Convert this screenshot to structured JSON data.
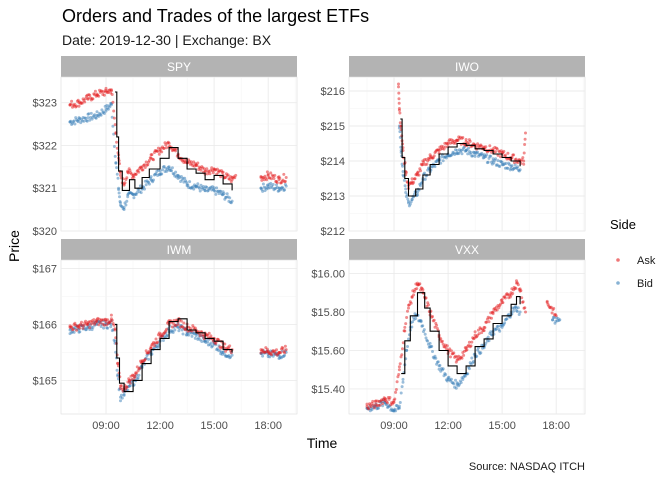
{
  "title": "Orders and Trades of the largest ETFs",
  "subtitle": "Date: 2019-12-30 | Exchange: BX",
  "caption": "Source: NASDAQ ITCH",
  "colors": {
    "ask": "#e41a1c",
    "bid": "#377eb8",
    "trade": "#000000",
    "strip": "#b3b3b3",
    "grid": "#ebebeb"
  },
  "chart_data": {
    "type": "scatter",
    "xlabel": "Time",
    "ylabel": "Price",
    "x_ticks": [
      "09:00",
      "12:00",
      "15:00",
      "18:00"
    ],
    "x_tick_hours": [
      9,
      12,
      15,
      18
    ],
    "xlim_hours": [
      6.5,
      19.6
    ],
    "legend": {
      "title": "Side",
      "position": "right",
      "entries": [
        {
          "name": "Ask",
          "color": "#e41a1c"
        },
        {
          "name": "Bid",
          "color": "#377eb8"
        }
      ]
    },
    "series_note": "Ask/Bid quotes as points, trades as black step line",
    "panels": [
      {
        "name": "SPY",
        "y_ticks": [
          "$320",
          "$321",
          "$322",
          "$323"
        ],
        "y_tick_values": [
          320,
          321,
          322,
          323
        ],
        "ylim": [
          320.0,
          323.6
        ],
        "ask": [
          [
            7.0,
            322.95
          ],
          [
            7.5,
            323.0
          ],
          [
            8.0,
            323.1
          ],
          [
            8.5,
            323.2
          ],
          [
            9.0,
            323.25
          ],
          [
            9.3,
            323.3
          ],
          [
            9.55,
            322.3
          ],
          [
            9.7,
            321.7
          ],
          [
            9.8,
            321.3
          ],
          [
            10.0,
            321.1
          ],
          [
            10.2,
            321.4
          ],
          [
            10.5,
            321.3
          ],
          [
            11.0,
            321.5
          ],
          [
            11.5,
            321.7
          ],
          [
            12.0,
            321.9
          ],
          [
            12.5,
            322.05
          ],
          [
            13.0,
            321.8
          ],
          [
            13.5,
            321.6
          ],
          [
            14.0,
            321.55
          ],
          [
            14.5,
            321.4
          ],
          [
            15.0,
            321.45
          ],
          [
            15.5,
            321.3
          ],
          [
            16.0,
            321.2
          ],
          [
            16.2,
            321.3
          ],
          [
            17.6,
            321.25
          ],
          [
            18.0,
            321.3
          ],
          [
            18.6,
            321.2
          ],
          [
            19.0,
            321.25
          ]
        ],
        "bid": [
          [
            7.0,
            322.55
          ],
          [
            7.5,
            322.6
          ],
          [
            8.0,
            322.65
          ],
          [
            8.5,
            322.7
          ],
          [
            9.0,
            322.85
          ],
          [
            9.3,
            322.95
          ],
          [
            9.55,
            321.6
          ],
          [
            9.7,
            321.0
          ],
          [
            9.8,
            320.6
          ],
          [
            10.0,
            320.55
          ],
          [
            10.2,
            320.8
          ],
          [
            10.5,
            320.85
          ],
          [
            11.0,
            321.0
          ],
          [
            11.5,
            321.2
          ],
          [
            12.0,
            321.4
          ],
          [
            12.5,
            321.5
          ],
          [
            13.0,
            321.3
          ],
          [
            13.5,
            321.1
          ],
          [
            14.0,
            321.05
          ],
          [
            14.5,
            320.95
          ],
          [
            15.0,
            320.95
          ],
          [
            15.5,
            320.85
          ],
          [
            16.0,
            320.7
          ],
          [
            17.6,
            321.0
          ],
          [
            18.0,
            321.05
          ],
          [
            18.6,
            321.0
          ],
          [
            19.0,
            321.05
          ]
        ],
        "trades": [
          [
            9.5,
            323.25
          ],
          [
            9.6,
            322.2
          ],
          [
            9.7,
            321.4
          ],
          [
            9.9,
            320.95
          ],
          [
            10.3,
            321.2
          ],
          [
            10.6,
            321.0
          ],
          [
            11.0,
            321.25
          ],
          [
            11.4,
            321.45
          ],
          [
            12.0,
            321.7
          ],
          [
            12.5,
            321.95
          ],
          [
            13.0,
            321.7
          ],
          [
            13.5,
            321.45
          ],
          [
            14.0,
            321.35
          ],
          [
            14.5,
            321.2
          ],
          [
            15.0,
            321.3
          ],
          [
            15.5,
            321.1
          ],
          [
            16.0,
            320.95
          ]
        ]
      },
      {
        "name": "IWO",
        "y_ticks": [
          "$212",
          "$213",
          "$214",
          "$215",
          "$216"
        ],
        "y_tick_values": [
          212,
          213,
          214,
          215,
          216
        ],
        "ylim": [
          212.0,
          216.4
        ],
        "ask": [
          [
            9.25,
            216.2
          ],
          [
            9.3,
            215.5
          ],
          [
            9.4,
            214.9
          ],
          [
            9.5,
            214.3
          ],
          [
            9.65,
            213.7
          ],
          [
            9.8,
            213.3
          ],
          [
            10.0,
            213.4
          ],
          [
            10.3,
            213.6
          ],
          [
            10.6,
            213.9
          ],
          [
            11.0,
            214.1
          ],
          [
            11.5,
            214.3
          ],
          [
            12.0,
            214.5
          ],
          [
            12.5,
            214.6
          ],
          [
            13.0,
            214.55
          ],
          [
            13.5,
            214.45
          ],
          [
            14.0,
            214.4
          ],
          [
            14.5,
            214.3
          ],
          [
            15.0,
            214.2
          ],
          [
            15.5,
            214.1
          ],
          [
            16.0,
            214.0
          ],
          [
            16.2,
            214.0
          ],
          [
            16.3,
            214.8
          ]
        ],
        "bid": [
          [
            9.3,
            215.0
          ],
          [
            9.4,
            214.3
          ],
          [
            9.5,
            213.7
          ],
          [
            9.65,
            213.1
          ],
          [
            9.8,
            212.8
          ],
          [
            10.0,
            212.9
          ],
          [
            10.3,
            213.1
          ],
          [
            10.6,
            213.5
          ],
          [
            11.0,
            213.75
          ],
          [
            11.5,
            214.0
          ],
          [
            12.0,
            214.2
          ],
          [
            12.5,
            214.3
          ],
          [
            13.0,
            214.3
          ],
          [
            13.5,
            214.2
          ],
          [
            14.0,
            214.1
          ],
          [
            14.5,
            214.0
          ],
          [
            15.0,
            213.9
          ],
          [
            15.5,
            213.85
          ],
          [
            16.0,
            213.75
          ]
        ],
        "trades": [
          [
            9.35,
            215.2
          ],
          [
            9.45,
            214.1
          ],
          [
            9.6,
            213.5
          ],
          [
            9.8,
            213.0
          ],
          [
            10.2,
            213.2
          ],
          [
            10.6,
            213.6
          ],
          [
            11.0,
            213.9
          ],
          [
            11.5,
            214.2
          ],
          [
            12.0,
            214.4
          ],
          [
            12.5,
            214.5
          ],
          [
            13.0,
            214.45
          ],
          [
            13.5,
            214.35
          ],
          [
            14.0,
            214.3
          ],
          [
            14.5,
            214.2
          ],
          [
            15.0,
            214.1
          ],
          [
            15.5,
            214.0
          ],
          [
            16.0,
            213.85
          ]
        ]
      },
      {
        "name": "IWM",
        "y_ticks": [
          "$165",
          "$166",
          "$167"
        ],
        "y_tick_values": [
          165,
          166,
          167
        ],
        "ylim": [
          164.4,
          167.15
        ],
        "ask": [
          [
            7.0,
            165.95
          ],
          [
            7.5,
            165.97
          ],
          [
            8.0,
            166.0
          ],
          [
            8.5,
            166.05
          ],
          [
            9.0,
            166.05
          ],
          [
            9.3,
            166.1
          ],
          [
            9.5,
            165.9
          ],
          [
            9.65,
            165.3
          ],
          [
            9.8,
            164.9
          ],
          [
            10.0,
            164.85
          ],
          [
            10.3,
            165.0
          ],
          [
            10.6,
            165.1
          ],
          [
            11.0,
            165.35
          ],
          [
            11.5,
            165.6
          ],
          [
            12.0,
            165.8
          ],
          [
            12.5,
            166.0
          ],
          [
            13.0,
            166.05
          ],
          [
            13.5,
            165.95
          ],
          [
            14.0,
            165.9
          ],
          [
            14.5,
            165.8
          ],
          [
            15.0,
            165.75
          ],
          [
            15.5,
            165.6
          ],
          [
            16.0,
            165.55
          ],
          [
            17.6,
            165.55
          ],
          [
            18.0,
            165.52
          ],
          [
            18.6,
            165.5
          ],
          [
            19.0,
            165.55
          ]
        ],
        "bid": [
          [
            7.0,
            165.9
          ],
          [
            7.5,
            165.92
          ],
          [
            8.0,
            165.95
          ],
          [
            8.5,
            166.0
          ],
          [
            9.0,
            166.0
          ],
          [
            9.3,
            166.0
          ],
          [
            9.5,
            165.7
          ],
          [
            9.65,
            165.1
          ],
          [
            9.8,
            164.7
          ],
          [
            10.0,
            164.75
          ],
          [
            10.3,
            164.9
          ],
          [
            10.6,
            165.0
          ],
          [
            11.0,
            165.25
          ],
          [
            11.5,
            165.5
          ],
          [
            12.0,
            165.7
          ],
          [
            12.5,
            165.9
          ],
          [
            13.0,
            165.95
          ],
          [
            13.5,
            165.85
          ],
          [
            14.0,
            165.8
          ],
          [
            14.5,
            165.7
          ],
          [
            15.0,
            165.65
          ],
          [
            15.5,
            165.5
          ],
          [
            16.0,
            165.45
          ],
          [
            17.6,
            165.48
          ],
          [
            18.0,
            165.46
          ],
          [
            18.6,
            165.45
          ],
          [
            19.0,
            165.5
          ]
        ],
        "trades": [
          [
            9.5,
            166.0
          ],
          [
            9.6,
            165.4
          ],
          [
            9.75,
            164.95
          ],
          [
            10.0,
            164.8
          ],
          [
            10.5,
            165.0
          ],
          [
            11.0,
            165.3
          ],
          [
            11.5,
            165.55
          ],
          [
            12.0,
            165.75
          ],
          [
            12.5,
            166.05
          ],
          [
            13.0,
            166.1
          ],
          [
            13.5,
            165.9
          ],
          [
            14.0,
            165.85
          ],
          [
            14.5,
            165.75
          ],
          [
            15.0,
            165.7
          ],
          [
            15.5,
            165.55
          ],
          [
            16.0,
            165.5
          ]
        ]
      },
      {
        "name": "VXX",
        "y_ticks": [
          "$15.40",
          "$15.60",
          "$15.80",
          "$16.00"
        ],
        "y_tick_values": [
          15.4,
          15.6,
          15.8,
          16.0
        ],
        "ylim": [
          15.27,
          16.07
        ],
        "ask": [
          [
            7.5,
            15.31
          ],
          [
            8.0,
            15.32
          ],
          [
            8.5,
            15.35
          ],
          [
            9.0,
            15.33
          ],
          [
            9.3,
            15.5
          ],
          [
            9.6,
            15.72
          ],
          [
            9.8,
            15.82
          ],
          [
            10.0,
            15.88
          ],
          [
            10.3,
            15.95
          ],
          [
            10.6,
            15.9
          ],
          [
            11.0,
            15.8
          ],
          [
            11.5,
            15.68
          ],
          [
            12.0,
            15.6
          ],
          [
            12.5,
            15.55
          ],
          [
            13.0,
            15.6
          ],
          [
            13.5,
            15.68
          ],
          [
            14.0,
            15.72
          ],
          [
            14.5,
            15.8
          ],
          [
            15.0,
            15.85
          ],
          [
            15.5,
            15.9
          ],
          [
            15.8,
            15.95
          ],
          [
            16.0,
            15.92
          ],
          [
            16.3,
            15.8
          ],
          [
            17.5,
            15.85
          ],
          [
            18.0,
            15.78
          ]
        ],
        "bid": [
          [
            7.5,
            15.3
          ],
          [
            8.0,
            15.31
          ],
          [
            8.5,
            15.33
          ],
          [
            9.0,
            15.29
          ],
          [
            9.3,
            15.3
          ],
          [
            9.5,
            15.45
          ],
          [
            9.7,
            15.6
          ],
          [
            9.9,
            15.72
          ],
          [
            10.2,
            15.78
          ],
          [
            10.5,
            15.75
          ],
          [
            11.0,
            15.62
          ],
          [
            11.5,
            15.52
          ],
          [
            12.0,
            15.45
          ],
          [
            12.5,
            15.42
          ],
          [
            13.0,
            15.48
          ],
          [
            13.5,
            15.58
          ],
          [
            14.0,
            15.62
          ],
          [
            14.5,
            15.7
          ],
          [
            15.0,
            15.72
          ],
          [
            15.5,
            15.8
          ],
          [
            15.8,
            15.82
          ],
          [
            16.0,
            15.8
          ],
          [
            17.8,
            15.76
          ],
          [
            18.2,
            15.76
          ]
        ],
        "trades": [
          [
            9.4,
            15.48
          ],
          [
            9.6,
            15.65
          ],
          [
            9.9,
            15.78
          ],
          [
            10.3,
            15.9
          ],
          [
            10.7,
            15.82
          ],
          [
            11.0,
            15.7
          ],
          [
            11.5,
            15.6
          ],
          [
            12.0,
            15.52
          ],
          [
            12.5,
            15.48
          ],
          [
            13.0,
            15.52
          ],
          [
            13.5,
            15.62
          ],
          [
            14.0,
            15.66
          ],
          [
            14.5,
            15.74
          ],
          [
            15.0,
            15.78
          ],
          [
            15.5,
            15.84
          ],
          [
            15.8,
            15.88
          ],
          [
            16.0,
            15.84
          ]
        ]
      }
    ]
  }
}
